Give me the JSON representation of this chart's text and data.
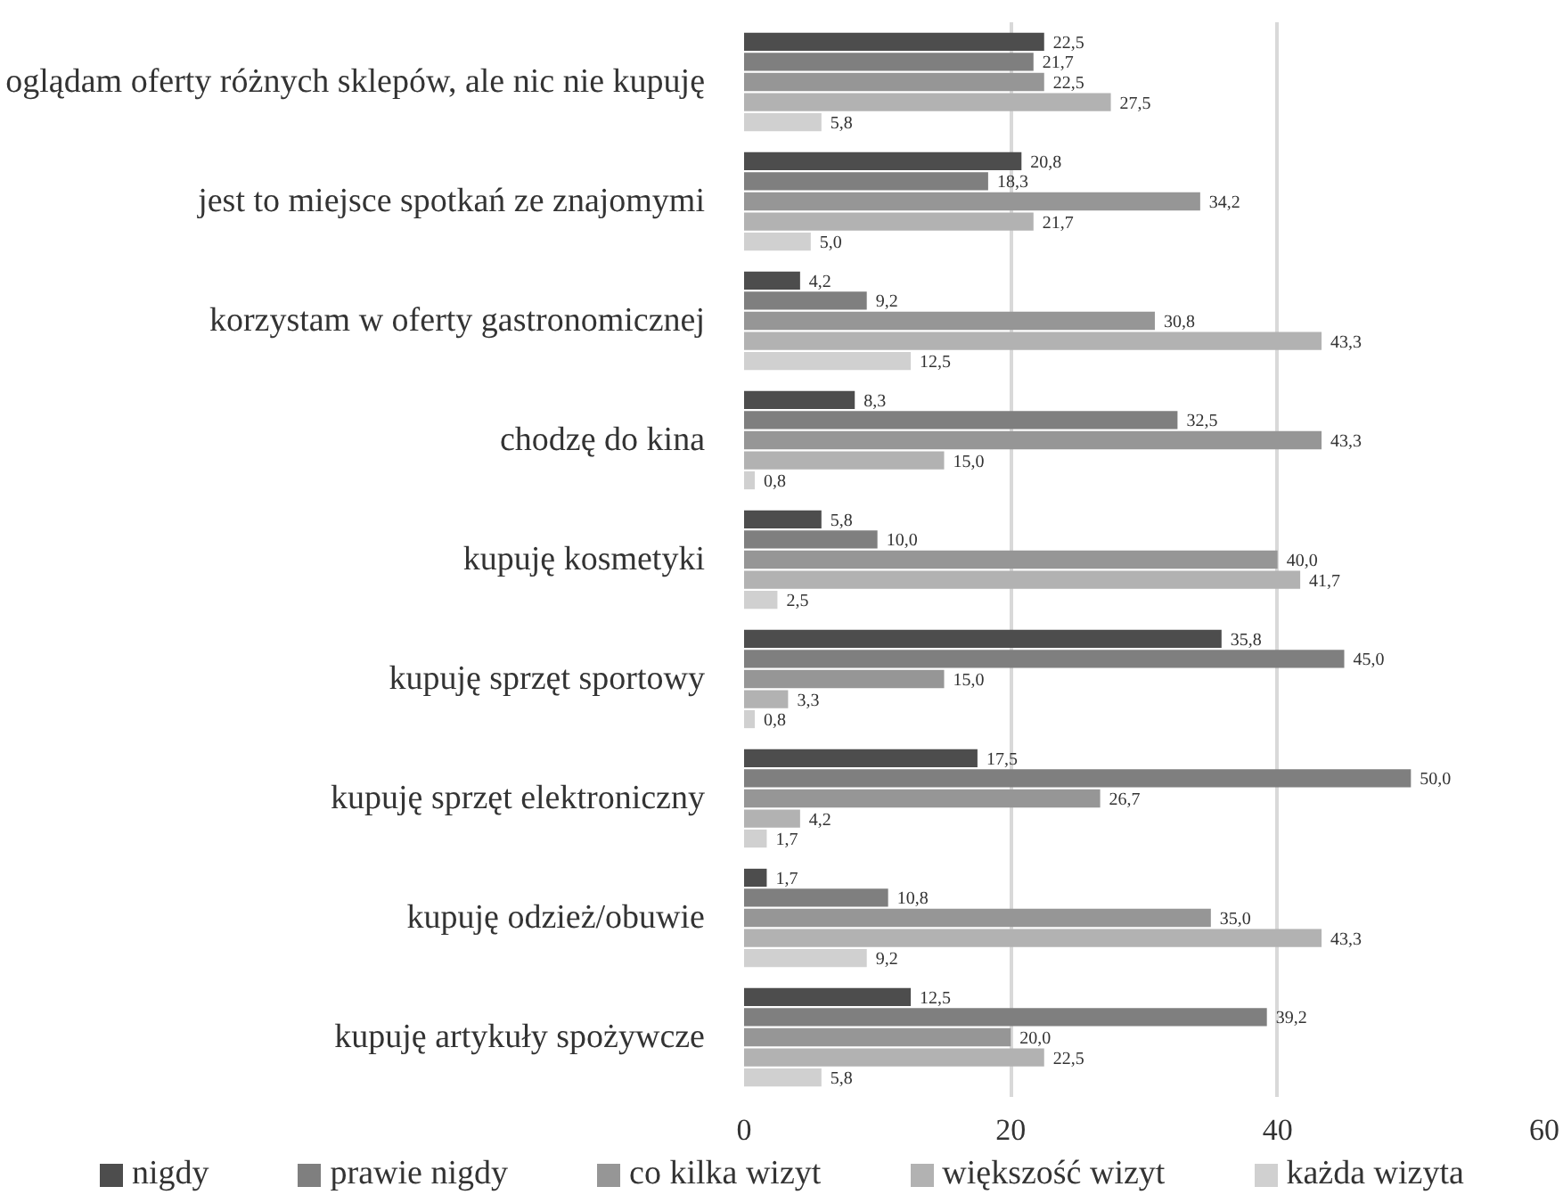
{
  "chart_data": {
    "type": "bar",
    "orientation": "horizontal",
    "categories": [
      "oglądam oferty różnych sklepów, ale nic nie kupuję",
      "jest to miejsce spotkań ze znajomymi",
      "korzystam w oferty gastronomicznej",
      "chodzę do kina",
      "kupuję kosmetyki",
      "kupuję sprzęt sportowy",
      "kupuję sprzęt elektroniczny",
      "kupuję odzież/obuwie",
      "kupuję artykuły spożywcze"
    ],
    "series": [
      {
        "name": "nigdy",
        "color": "#4d4d4d",
        "values": [
          22.5,
          20.8,
          4.2,
          8.3,
          5.8,
          35.8,
          17.5,
          1.7,
          12.5
        ],
        "value_labels": [
          "22,5",
          "20,8",
          "4,2",
          "8,3",
          "5,8",
          "35,8",
          "17,5",
          "1,7",
          "12,5"
        ]
      },
      {
        "name": "prawie nigdy",
        "color": "#7f7f7f",
        "values": [
          21.7,
          18.3,
          9.2,
          32.5,
          10.0,
          45.0,
          50.0,
          10.8,
          39.2
        ],
        "value_labels": [
          "21,7",
          "18,3",
          "9,2",
          "32,5",
          "10,0",
          "45,0",
          "50,0",
          "10,8",
          "39,2"
        ]
      },
      {
        "name": "co kilka wizyt",
        "color": "#969696",
        "values": [
          22.5,
          34.2,
          30.8,
          43.3,
          40.0,
          15.0,
          26.7,
          35.0,
          20.0
        ],
        "value_labels": [
          "22,5",
          "34,2",
          "30,8",
          "43,3",
          "40,0",
          "15,0",
          "26,7",
          "35,0",
          "20,0"
        ]
      },
      {
        "name": "większość wizyt",
        "color": "#b2b2b2",
        "values": [
          27.5,
          21.7,
          43.3,
          15.0,
          41.7,
          3.3,
          4.2,
          43.3,
          22.5
        ],
        "value_labels": [
          "27,5",
          "21,7",
          "43,3",
          "15,0",
          "41,7",
          "3,3",
          "4,2",
          "43,3",
          "22,5"
        ]
      },
      {
        "name": "każda wizyta",
        "color": "#d0d0d0",
        "values": [
          5.8,
          5.0,
          12.5,
          0.8,
          2.5,
          0.8,
          1.7,
          9.2,
          5.8
        ],
        "value_labels": [
          "5,8",
          "5,0",
          "12,5",
          "0,8",
          "2,5",
          "0,8",
          "1,7",
          "9,2",
          "5,8"
        ]
      }
    ],
    "xlim": [
      0,
      60
    ],
    "xticks": [
      0,
      20,
      40,
      60
    ],
    "grid": "x",
    "legend": "bottom"
  }
}
